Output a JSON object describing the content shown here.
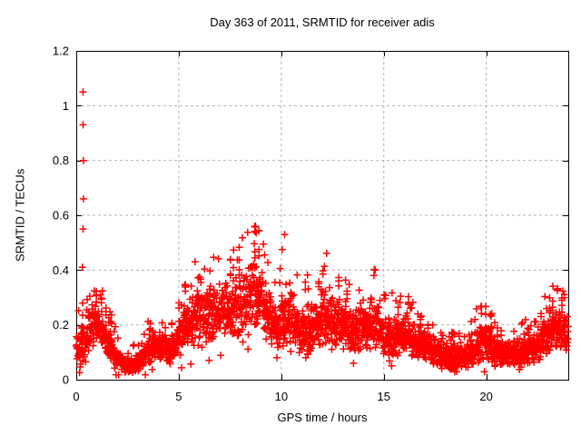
{
  "window": {
    "background": "#ffffff"
  },
  "chart_data": {
    "type": "scatter",
    "title": "Day 363 of 2011, SRMTID for receiver adis",
    "xlabel": "GPS time / hours",
    "ylabel": "SRMTID / TECUs",
    "xlim": [
      0,
      24
    ],
    "ylim": [
      0,
      1.2
    ],
    "xticks": {
      "values": [
        0,
        5,
        10,
        15,
        20
      ],
      "labels": [
        "0",
        "5",
        "10",
        "15",
        "20"
      ]
    },
    "yticks": {
      "values": [
        0,
        0.2,
        0.4,
        0.6,
        0.8,
        1.0,
        1.2
      ],
      "labels": [
        "0",
        "0.2",
        "0.4",
        "0.6",
        "0.8",
        "1",
        "1.2"
      ]
    },
    "grid": {
      "on": true,
      "color": "#b3b3b3",
      "dash": "3 3",
      "width": 1
    },
    "axis_color": "#000000",
    "tick_length": 6,
    "legend": {
      "visible": false
    },
    "marker": {
      "shape": "plus",
      "color": "#ff0000",
      "size": 9,
      "stroke_width": 1.5
    },
    "series_name": "SRMTID",
    "profile": {
      "comment": "dense scatter band described by center/half-spread envelope vs GPS hour",
      "x": [
        0,
        0.4,
        0.8,
        1.1,
        1.6,
        2.1,
        2.6,
        3.1,
        3.6,
        4.1,
        4.6,
        5.1,
        5.6,
        6.0,
        6.5,
        7.0,
        7.5,
        8.0,
        8.5,
        8.8,
        9.1,
        9.5,
        9.8,
        10.1,
        10.5,
        11.0,
        11.5,
        12.0,
        12.5,
        13.0,
        13.5,
        14.0,
        14.5,
        15.0,
        15.5,
        16.0,
        16.5,
        17.0,
        17.5,
        18.0,
        18.5,
        19.0,
        19.5,
        20.0,
        20.4,
        21.0,
        21.5,
        22.0,
        22.5,
        23.0,
        23.4,
        23.7,
        24.0
      ],
      "center": [
        0.1,
        0.13,
        0.21,
        0.19,
        0.12,
        0.065,
        0.05,
        0.065,
        0.115,
        0.13,
        0.1,
        0.16,
        0.21,
        0.26,
        0.24,
        0.26,
        0.24,
        0.26,
        0.3,
        0.33,
        0.29,
        0.22,
        0.16,
        0.24,
        0.22,
        0.17,
        0.17,
        0.22,
        0.22,
        0.2,
        0.17,
        0.19,
        0.21,
        0.16,
        0.145,
        0.165,
        0.14,
        0.125,
        0.1,
        0.09,
        0.075,
        0.08,
        0.115,
        0.145,
        0.1,
        0.09,
        0.1,
        0.11,
        0.125,
        0.155,
        0.195,
        0.165,
        0.16
      ],
      "spread": [
        0.055,
        0.075,
        0.085,
        0.075,
        0.055,
        0.04,
        0.03,
        0.035,
        0.05,
        0.05,
        0.045,
        0.07,
        0.09,
        0.1,
        0.1,
        0.1,
        0.095,
        0.1,
        0.11,
        0.13,
        0.11,
        0.09,
        0.065,
        0.12,
        0.09,
        0.085,
        0.09,
        0.1,
        0.095,
        0.08,
        0.075,
        0.08,
        0.1,
        0.07,
        0.065,
        0.075,
        0.06,
        0.055,
        0.05,
        0.045,
        0.04,
        0.04,
        0.055,
        0.065,
        0.05,
        0.045,
        0.05,
        0.05,
        0.055,
        0.065,
        0.075,
        0.065,
        0.065
      ]
    },
    "outliers": [
      {
        "x": 0.3,
        "y": 0.41
      },
      {
        "x": 0.33,
        "y": 0.55
      },
      {
        "x": 0.35,
        "y": 0.66
      },
      {
        "x": 0.35,
        "y": 0.8
      },
      {
        "x": 0.33,
        "y": 0.93
      },
      {
        "x": 0.33,
        "y": 1.05
      }
    ],
    "generator": {
      "seed": 363,
      "step_hours": 0.0105,
      "noise_scale": 1.15,
      "tail_probability": 0.045,
      "tail_min": 0.9,
      "tail_extra": 1.7,
      "low_tail_probability": 0.012,
      "column_probability": 0.022,
      "double_point_fraction": 0.18,
      "min_value": 0.018,
      "max_value": 0.56
    }
  }
}
